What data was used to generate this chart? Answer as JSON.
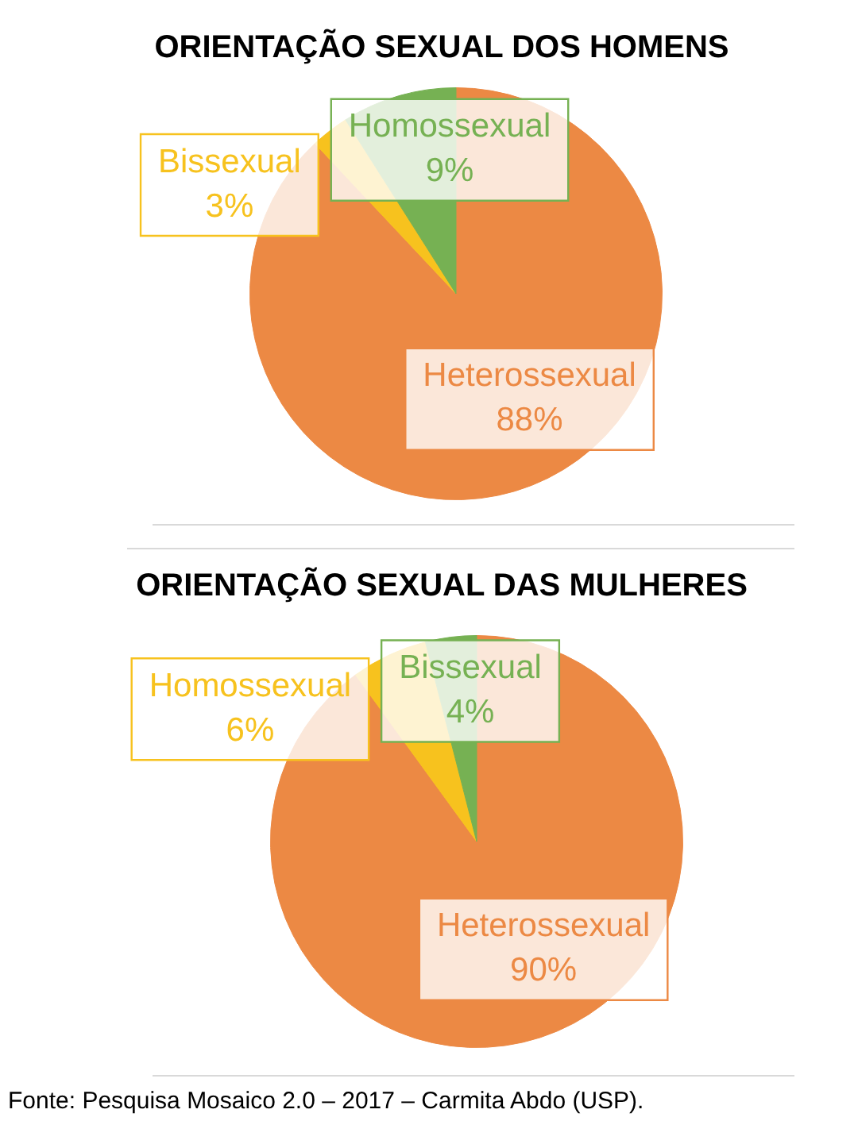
{
  "chart_data": [
    {
      "type": "pie",
      "title": "ORIENTAÇÃO SEXUAL DOS HOMENS",
      "categories": [
        "Heterossexual",
        "Bissexual",
        "Homossexual"
      ],
      "values": [
        88,
        3,
        9
      ],
      "colors": [
        "#ec8944",
        "#f7c21e",
        "#76b153"
      ],
      "value_labels": [
        "88%",
        "3%",
        "9%"
      ]
    },
    {
      "type": "pie",
      "title": "ORIENTAÇÃO SEXUAL DAS MULHERES",
      "categories": [
        "Heterossexual",
        "Homossexual",
        "Bissexual"
      ],
      "values": [
        90,
        6,
        4
      ],
      "colors": [
        "#ec8944",
        "#f7c21e",
        "#76b153"
      ],
      "value_labels": [
        "90%",
        "6%",
        "4%"
      ],
      "annotations": [
        "Fonte: Pesquisa Mosaico 2.0 – 2017 – Carmita Abdo (USP)."
      ]
    }
  ]
}
